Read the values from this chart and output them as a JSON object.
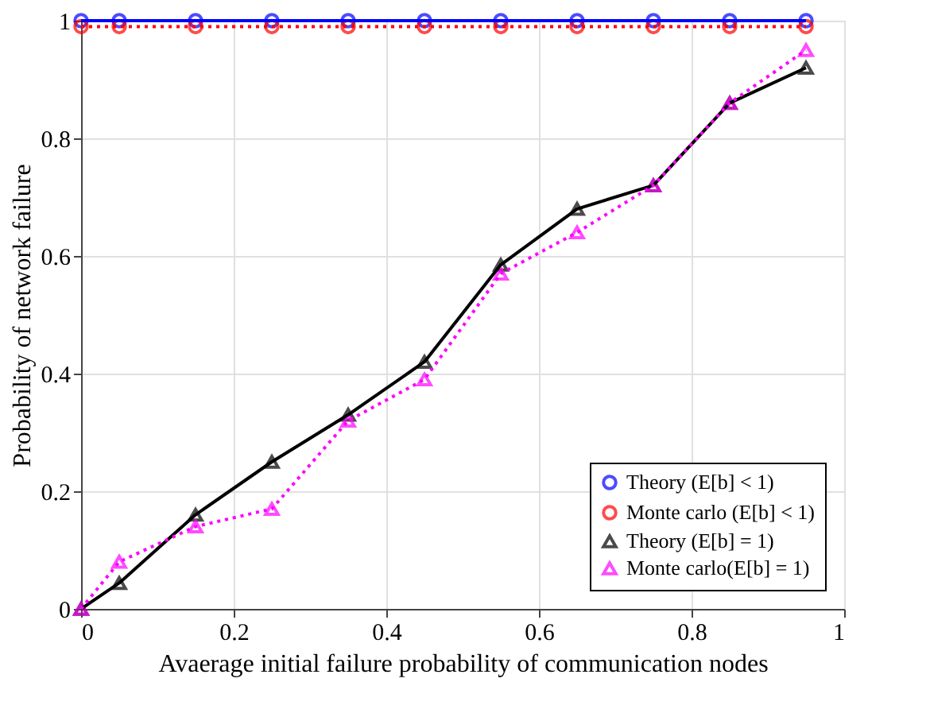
{
  "chart_data": {
    "type": "line",
    "xlabel": "Avaerage initial failure probability of communication nodes",
    "ylabel": "Probability of network failure",
    "x": [
      0,
      0.05,
      0.15,
      0.25,
      0.35,
      0.45,
      0.55,
      0.65,
      0.75,
      0.85,
      0.95
    ],
    "xlim": [
      0,
      1
    ],
    "xticks": [
      0,
      0.2,
      0.4,
      0.6,
      0.8,
      1
    ],
    "ylim": [
      0,
      1
    ],
    "yticks": [
      0,
      0.2,
      0.4,
      0.6,
      0.8,
      1
    ],
    "grid": true,
    "legend": "bottom right",
    "series": [
      {
        "name": "Theory (E[b] < 1)",
        "color": "#0000ff",
        "marker": "circle",
        "line_style": "solid",
        "values": [
          1,
          1,
          1,
          1,
          1,
          1,
          1,
          1,
          1,
          1,
          1
        ]
      },
      {
        "name": "Monte carlo (E[b] < 1)",
        "color": "#ff0000",
        "marker": "circle",
        "line_style": "dotted",
        "values": [
          0.99,
          0.99,
          0.99,
          0.99,
          0.99,
          0.99,
          0.99,
          0.99,
          0.99,
          0.99,
          0.99
        ]
      },
      {
        "name": "Theory (E[b] = 1)",
        "color": "#000000",
        "marker": "triangle",
        "line_style": "solid",
        "values": [
          0,
          0.044,
          0.16,
          0.25,
          0.33,
          0.42,
          0.585,
          0.68,
          0.72,
          0.86,
          0.92
        ]
      },
      {
        "name": "Monte carlo(E[b] = 1)",
        "color": "#ff00ff",
        "marker": "triangle",
        "line_style": "dotted",
        "values": [
          0,
          0.08,
          0.14,
          0.17,
          0.32,
          0.39,
          0.57,
          0.64,
          0.72,
          0.86,
          0.95
        ]
      }
    ]
  }
}
